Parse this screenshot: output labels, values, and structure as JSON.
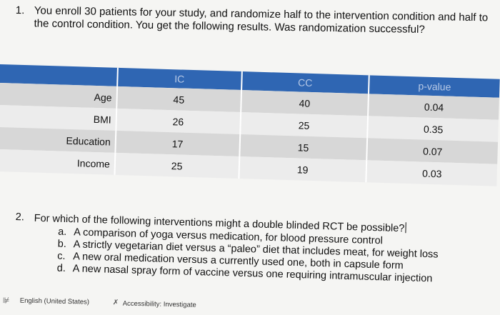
{
  "question1": {
    "number": "1.",
    "text": "You enroll 30 patients for your study, and randomize half to the intervention condition and half to the control condition. You get the following results. Was randomization successful?"
  },
  "table": {
    "headers": [
      "",
      "IC",
      "CC",
      "p-value"
    ],
    "rows": [
      {
        "label": "Age",
        "ic": "45",
        "cc": "40",
        "p": "0.04"
      },
      {
        "label": "BMI",
        "ic": "26",
        "cc": "25",
        "p": "0.35"
      },
      {
        "label": "Education",
        "ic": "17",
        "cc": "15",
        "p": "0.07"
      },
      {
        "label": "Income",
        "ic": "25",
        "cc": "19",
        "p": "0.03"
      }
    ]
  },
  "question2": {
    "number": "2.",
    "text": "For which of the following interventions might a double blinded RCT be possible?",
    "options": [
      {
        "letter": "a.",
        "text": "A comparison of yoga versus medication, for blood pressure control"
      },
      {
        "letter": "b.",
        "text": "A strictly vegetarian diet versus a “paleo” diet that includes meat, for weight loss"
      },
      {
        "letter": "c.",
        "text": "A new oral medication versus a currently used one, both in capsule form"
      },
      {
        "letter": "d.",
        "text": "A new nasal spray form of vaccine versus one requiring intramuscular injection"
      }
    ]
  },
  "statusbar": {
    "language": "English (United States)",
    "accessibility": "Accessibility: Investigate",
    "language_icon": "proofing-icon",
    "accessibility_icon": "accessibility-icon"
  }
}
